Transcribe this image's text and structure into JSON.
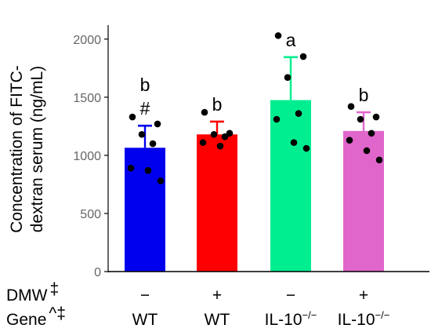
{
  "chart_data": {
    "type": "bar",
    "ylabel": "Concentration of FITC-\ndextran serum (ng/mL)",
    "ylim": [
      0,
      2100
    ],
    "yticks": [
      "0",
      "500",
      "1000",
      "1500",
      "2000"
    ],
    "grid": false,
    "rows": [
      {
        "label": "DMW",
        "sup": "‡",
        "values": [
          "−",
          "+",
          "−",
          "+"
        ]
      },
      {
        "label": "Gene",
        "sup": "^‡",
        "values": [
          "WT",
          "WT",
          "IL-10",
          "IL-10"
        ],
        "value_sups": [
          "",
          "",
          "−/−",
          "−/−"
        ]
      }
    ],
    "bars": [
      {
        "mean": 1065,
        "sd": 190,
        "color": "#0000ee",
        "labels": [
          "b",
          "#"
        ],
        "points": [
          1330,
          1270,
          1180,
          1100,
          890,
          870,
          780
        ]
      },
      {
        "mean": 1180,
        "sd": 110,
        "color": "#ff0000",
        "labels": [
          "b"
        ],
        "points": [
          1370,
          1190,
          1180,
          1160,
          1110,
          1080
        ]
      },
      {
        "mean": 1475,
        "sd": 370,
        "color": "#00ee90",
        "labels": [
          "a"
        ],
        "points": [
          2030,
          1850,
          1670,
          1360,
          1310,
          1110,
          1060
        ]
      },
      {
        "mean": 1210,
        "sd": 160,
        "color": "#e066cc",
        "labels": [
          "b"
        ],
        "points": [
          1420,
          1330,
          1310,
          1190,
          1130,
          1040,
          960
        ]
      }
    ]
  }
}
